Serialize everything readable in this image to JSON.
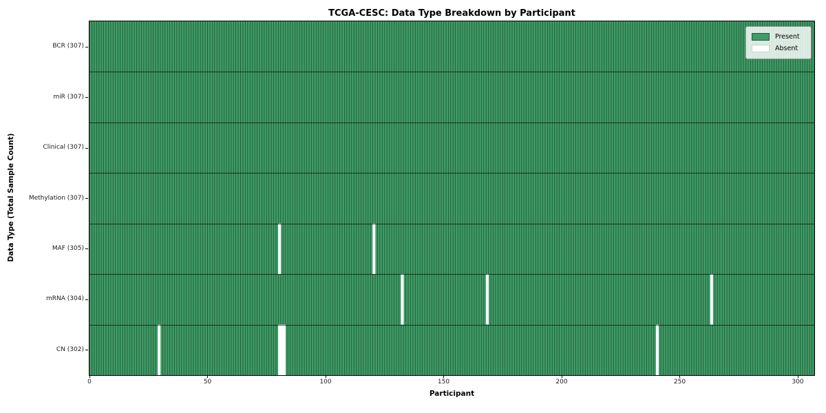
{
  "chart_data": {
    "type": "heatmap",
    "title": "TCGA-CESC: Data Type Breakdown by Participant",
    "xlabel": "Participant",
    "ylabel": "Data Type (Total Sample Count)",
    "x_ticks": [
      0,
      50,
      100,
      150,
      200,
      250,
      300
    ],
    "xlim": [
      0,
      307
    ],
    "n_participants": 307,
    "grid": "cell-edges",
    "legend_position": "upper right",
    "rows": [
      {
        "name": "BCR",
        "label": "BCR (307)",
        "total_samples": 307,
        "absent_participants": []
      },
      {
        "name": "miR",
        "label": "miR (307)",
        "total_samples": 307,
        "absent_participants": []
      },
      {
        "name": "Clinical",
        "label": "Clinical (307)",
        "total_samples": 307,
        "absent_participants": []
      },
      {
        "name": "Methylation",
        "label": "Methylation (307)",
        "total_samples": 307,
        "absent_participants": []
      },
      {
        "name": "MAF",
        "label": "MAF (305)",
        "total_samples": 305,
        "absent_participants": [
          80,
          120
        ]
      },
      {
        "name": "mRNA",
        "label": "mRNA (304)",
        "total_samples": 304,
        "absent_participants": [
          132,
          168,
          263
        ]
      },
      {
        "name": "CN",
        "label": "CN (302)",
        "total_samples": 302,
        "absent_participants": [
          29,
          80,
          81,
          82,
          240
        ]
      }
    ],
    "legend": [
      {
        "label": "Present",
        "color": "#3f9d66"
      },
      {
        "label": "Absent",
        "color": "#ffffff"
      }
    ],
    "colors": {
      "present": "#3f9d66",
      "absent": "#ffffff",
      "cell_edge": "#000000",
      "row_divider": "#000000",
      "axis": "#000000"
    }
  }
}
